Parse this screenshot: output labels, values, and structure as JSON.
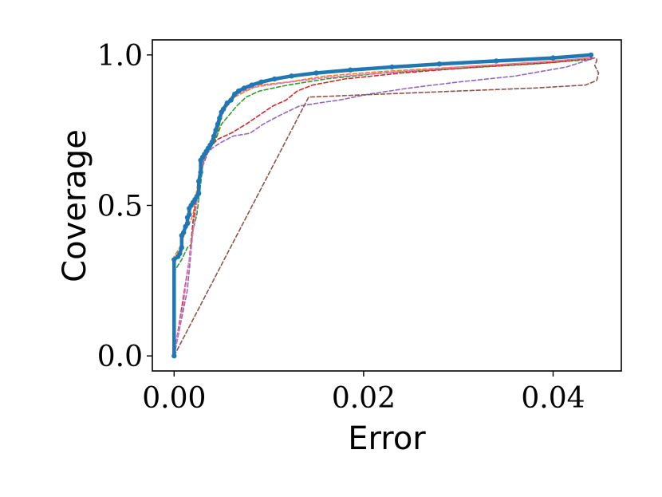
{
  "chart_data": {
    "type": "line",
    "title": "",
    "xlabel": "Error",
    "ylabel": "Coverage",
    "xlim": [
      -0.0023,
      0.0472
    ],
    "ylim": [
      -0.05,
      1.05
    ],
    "xticks": [
      0.0,
      0.02,
      0.04
    ],
    "xtick_labels": [
      "0.00",
      "0.02",
      "0.04"
    ],
    "yticks": [
      0.0,
      0.5,
      1.0
    ],
    "ytick_labels": [
      "0.0",
      "0.5",
      "1.0"
    ],
    "grid": false,
    "legend": "none",
    "series": [
      {
        "color": "#ff7f0e",
        "style": "dashed",
        "points": [
          [
            0.0,
            0.0
          ],
          [
            0.0,
            0.33
          ],
          [
            0.0008,
            0.37
          ],
          [
            0.0012,
            0.42
          ],
          [
            0.0016,
            0.44
          ],
          [
            0.002,
            0.47
          ],
          [
            0.0024,
            0.55
          ],
          [
            0.0026,
            0.6
          ],
          [
            0.0028,
            0.64
          ],
          [
            0.003,
            0.67
          ],
          [
            0.0036,
            0.69
          ],
          [
            0.004,
            0.7
          ],
          [
            0.0046,
            0.74
          ],
          [
            0.005,
            0.8
          ],
          [
            0.0056,
            0.83
          ],
          [
            0.0064,
            0.86
          ],
          [
            0.0076,
            0.88
          ],
          [
            0.009,
            0.9
          ],
          [
            0.012,
            0.91
          ],
          [
            0.016,
            0.93
          ],
          [
            0.022,
            0.945
          ],
          [
            0.03,
            0.96
          ],
          [
            0.038,
            0.975
          ],
          [
            0.044,
            0.99
          ]
        ]
      },
      {
        "color": "#2ca02c",
        "style": "dashed",
        "points": [
          [
            0.0,
            0.0
          ],
          [
            0.0,
            0.28
          ],
          [
            0.0008,
            0.32
          ],
          [
            0.0014,
            0.36
          ],
          [
            0.0018,
            0.37
          ],
          [
            0.002,
            0.42
          ],
          [
            0.0024,
            0.47
          ],
          [
            0.0026,
            0.52
          ],
          [
            0.0028,
            0.57
          ],
          [
            0.003,
            0.63
          ],
          [
            0.0034,
            0.69
          ],
          [
            0.004,
            0.7
          ],
          [
            0.0044,
            0.72
          ],
          [
            0.005,
            0.77
          ],
          [
            0.0058,
            0.8
          ],
          [
            0.0066,
            0.83
          ],
          [
            0.0076,
            0.86
          ],
          [
            0.009,
            0.88
          ],
          [
            0.012,
            0.9
          ],
          [
            0.016,
            0.92
          ],
          [
            0.022,
            0.94
          ],
          [
            0.03,
            0.955
          ],
          [
            0.038,
            0.97
          ],
          [
            0.044,
            0.985
          ]
        ]
      },
      {
        "color": "#d62728",
        "style": "dashed",
        "points": [
          [
            0.0,
            0.0
          ],
          [
            0.001,
            0.2
          ],
          [
            0.0016,
            0.32
          ],
          [
            0.002,
            0.45
          ],
          [
            0.0026,
            0.57
          ],
          [
            0.003,
            0.63
          ],
          [
            0.0036,
            0.68
          ],
          [
            0.004,
            0.7
          ],
          [
            0.0046,
            0.72
          ],
          [
            0.006,
            0.74
          ],
          [
            0.0076,
            0.77
          ],
          [
            0.009,
            0.8
          ],
          [
            0.0104,
            0.83
          ],
          [
            0.0118,
            0.85
          ],
          [
            0.013,
            0.88
          ],
          [
            0.0146,
            0.9
          ],
          [
            0.018,
            0.92
          ],
          [
            0.024,
            0.94
          ],
          [
            0.032,
            0.96
          ],
          [
            0.04,
            0.975
          ],
          [
            0.0444,
            0.99
          ]
        ]
      },
      {
        "color": "#9467bd",
        "style": "dashed",
        "points": [
          [
            0.0,
            0.0
          ],
          [
            0.0014,
            0.22
          ],
          [
            0.002,
            0.42
          ],
          [
            0.0026,
            0.56
          ],
          [
            0.003,
            0.63
          ],
          [
            0.0034,
            0.67
          ],
          [
            0.004,
            0.69
          ],
          [
            0.005,
            0.71
          ],
          [
            0.0062,
            0.73
          ],
          [
            0.008,
            0.74
          ],
          [
            0.0094,
            0.77
          ],
          [
            0.0112,
            0.8
          ],
          [
            0.0132,
            0.83
          ],
          [
            0.0152,
            0.84
          ],
          [
            0.0174,
            0.85
          ],
          [
            0.0206,
            0.87
          ],
          [
            0.0248,
            0.89
          ],
          [
            0.03,
            0.91
          ],
          [
            0.036,
            0.93
          ],
          [
            0.0414,
            0.96
          ],
          [
            0.0444,
            0.99
          ]
        ]
      },
      {
        "color": "#8c564b",
        "style": "dashed",
        "points": [
          [
            0.0,
            0.0
          ],
          [
            0.0142,
            0.86
          ],
          [
            0.022,
            0.87
          ],
          [
            0.03,
            0.88
          ],
          [
            0.038,
            0.89
          ],
          [
            0.0434,
            0.9
          ],
          [
            0.0446,
            0.915
          ],
          [
            0.0448,
            0.94
          ],
          [
            0.0444,
            0.965
          ],
          [
            0.0446,
            0.98
          ],
          [
            0.0446,
            0.99
          ]
        ]
      },
      {
        "color": "#e377c2",
        "style": "dashed",
        "points": [
          [
            0.0,
            0.0
          ],
          [
            0.001,
            0.18
          ],
          [
            0.0016,
            0.32
          ],
          [
            0.0022,
            0.46
          ],
          [
            0.0026,
            0.57
          ],
          [
            0.003,
            0.64
          ],
          [
            0.0036,
            0.69
          ],
          [
            0.004,
            0.7
          ],
          [
            0.0046,
            0.76
          ],
          [
            0.0052,
            0.81
          ],
          [
            0.006,
            0.86
          ],
          [
            0.008,
            0.89
          ],
          [
            0.011,
            0.905
          ],
          [
            0.016,
            0.925
          ],
          [
            0.022,
            0.94
          ],
          [
            0.03,
            0.96
          ],
          [
            0.038,
            0.975
          ],
          [
            0.044,
            0.99
          ]
        ]
      },
      {
        "color": "#1f77b4",
        "style": "solid-marked",
        "points": [
          [
            0.0,
            0.0
          ],
          [
            0.0,
            0.32
          ],
          [
            0.0004,
            0.33
          ],
          [
            0.0006,
            0.34
          ],
          [
            0.0008,
            0.36
          ],
          [
            0.0008,
            0.4
          ],
          [
            0.001,
            0.41
          ],
          [
            0.0012,
            0.43
          ],
          [
            0.0014,
            0.44
          ],
          [
            0.0014,
            0.46
          ],
          [
            0.0016,
            0.47
          ],
          [
            0.0016,
            0.49
          ],
          [
            0.0018,
            0.5
          ],
          [
            0.002,
            0.51
          ],
          [
            0.0022,
            0.52
          ],
          [
            0.0024,
            0.53
          ],
          [
            0.0026,
            0.54
          ],
          [
            0.0026,
            0.58
          ],
          [
            0.0028,
            0.61
          ],
          [
            0.0028,
            0.65
          ],
          [
            0.003,
            0.66
          ],
          [
            0.0032,
            0.67
          ],
          [
            0.0034,
            0.68
          ],
          [
            0.0036,
            0.69
          ],
          [
            0.0038,
            0.7
          ],
          [
            0.004,
            0.71
          ],
          [
            0.0042,
            0.73
          ],
          [
            0.0044,
            0.75
          ],
          [
            0.0046,
            0.77
          ],
          [
            0.0048,
            0.79
          ],
          [
            0.005,
            0.81
          ],
          [
            0.0052,
            0.82
          ],
          [
            0.0056,
            0.84
          ],
          [
            0.006,
            0.85
          ],
          [
            0.0064,
            0.87
          ],
          [
            0.0068,
            0.88
          ],
          [
            0.0074,
            0.89
          ],
          [
            0.0082,
            0.9
          ],
          [
            0.0092,
            0.91
          ],
          [
            0.0106,
            0.92
          ],
          [
            0.0124,
            0.93
          ],
          [
            0.015,
            0.94
          ],
          [
            0.0186,
            0.95
          ],
          [
            0.023,
            0.96
          ],
          [
            0.028,
            0.97
          ],
          [
            0.034,
            0.98
          ],
          [
            0.04,
            0.99
          ],
          [
            0.044,
            1.0
          ]
        ]
      }
    ]
  }
}
